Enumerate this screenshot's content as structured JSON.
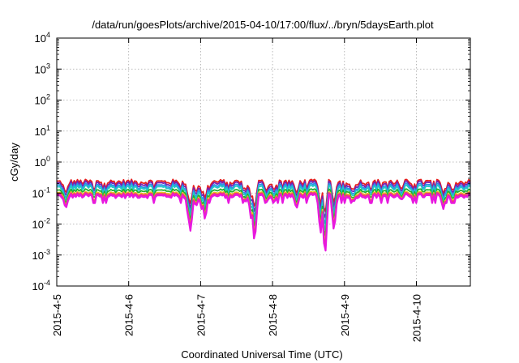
{
  "chart_data": {
    "type": "line",
    "title": "/data/run/goesPlots/archive/2015-04-10/17:00/flux/../bryn/5daysEarth.plot",
    "xlabel": "Coordinated Universal Time (UTC)",
    "ylabel": "cGy/day",
    "y_scale": "log",
    "ylim": [
      0.0001,
      10000
    ],
    "xlim": [
      "2015-04-05",
      "2015-04-10T18:00"
    ],
    "y_ticks": [
      {
        "base": "10",
        "exp": "-4"
      },
      {
        "base": "10",
        "exp": "-3"
      },
      {
        "base": "10",
        "exp": "-2"
      },
      {
        "base": "10",
        "exp": "-1"
      },
      {
        "base": "10",
        "exp": "0"
      },
      {
        "base": "10",
        "exp": "1"
      },
      {
        "base": "10",
        "exp": "2"
      },
      {
        "base": "10",
        "exp": "3"
      },
      {
        "base": "10",
        "exp": "4"
      }
    ],
    "x_ticks": [
      "2015-4-5",
      "2015-4-6",
      "2015-4-7",
      "2015-4-8",
      "2015-4-9",
      "2015-4-10"
    ],
    "grid": true,
    "series": [
      {
        "color": "#e8201e",
        "baseline": 0.23,
        "amplitude": 0.06,
        "min_sag": 0.09
      },
      {
        "color": "#7a1fb0",
        "baseline": 0.2,
        "amplitude": 0.06,
        "min_sag": 0.08
      },
      {
        "color": "#2a8fe8",
        "baseline": 0.17,
        "amplitude": 0.05,
        "min_sag": 0.07
      },
      {
        "color": "#22c8c8",
        "baseline": 0.15,
        "amplitude": 0.04,
        "min_sag": 0.06
      },
      {
        "color": "#22b030",
        "baseline": 0.12,
        "amplitude": 0.02,
        "min_sag": 0.05
      },
      {
        "color": "#e8c020",
        "baseline": 0.1,
        "amplitude": 0.015,
        "min_sag": 0.04
      },
      {
        "color": "#f03088",
        "baseline": 0.09,
        "amplitude": 0.015,
        "min_sag": 0.035
      },
      {
        "color": "#e818e0",
        "baseline": 0.08,
        "amplitude": 0.015,
        "min_sag": 0.03
      }
    ],
    "dips": [
      {
        "x": "2015-04-05T03:00",
        "value": 0.03
      },
      {
        "x": "2015-04-06T20:00",
        "value": 0.012
      },
      {
        "x": "2015-04-06T20:40",
        "value": 0.005
      },
      {
        "x": "2015-04-06T22:30",
        "value": 0.035
      },
      {
        "x": "2015-04-07T00:30",
        "value": 0.025
      },
      {
        "x": "2015-04-07T01:30",
        "value": 0.012
      },
      {
        "x": "2015-04-07T15:00",
        "value": 0.05
      },
      {
        "x": "2015-04-07T18:00",
        "value": 0.0019
      },
      {
        "x": "2015-04-07T17:00",
        "value": 0.01
      },
      {
        "x": "2015-04-07T22:00",
        "value": 0.05
      },
      {
        "x": "2015-04-08T00:30",
        "value": 0.05
      },
      {
        "x": "2015-04-08T08:00",
        "value": 0.03
      },
      {
        "x": "2015-04-08T16:00",
        "value": 0.004
      },
      {
        "x": "2015-04-08T17:30",
        "value": 0.0006
      },
      {
        "x": "2015-04-08T20:30",
        "value": 0.005
      },
      {
        "x": "2015-04-09T03:00",
        "value": 0.05
      },
      {
        "x": "2015-04-09T19:00",
        "value": 0.06
      },
      {
        "x": "2015-04-10T09:00",
        "value": 0.03
      },
      {
        "x": "2015-04-10T12:00",
        "value": 0.05
      }
    ]
  }
}
